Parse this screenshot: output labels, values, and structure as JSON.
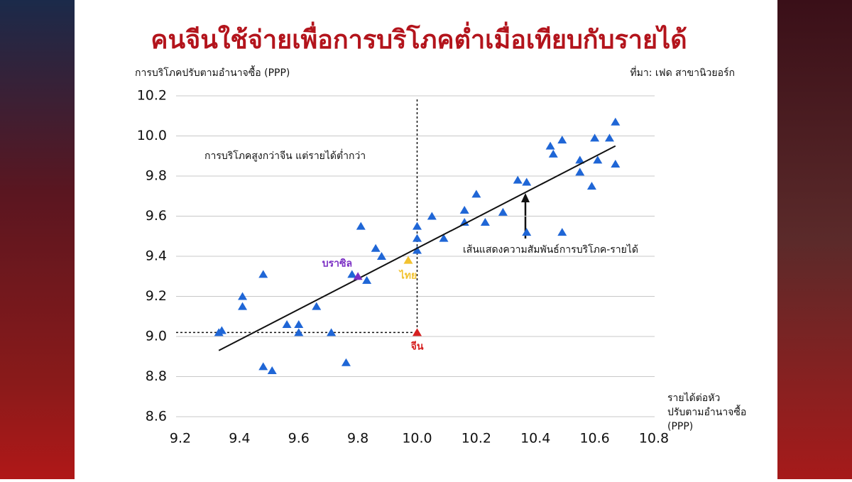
{
  "chart_data": {
    "type": "scatter",
    "title": "คนจีนใช้จ่ายเพื่อการบริโภคต่ำเมื่อเทียบกับรายได้",
    "y_label": "การบริโภคปรับตามอำนาจซื้อ (PPP)",
    "x_label": [
      "รายได้ต่อหัว",
      "ปรับตามอำนาจซื้อ",
      "(PPP)"
    ],
    "source": "ที่มา: เฟด สาขานิวยอร์ก",
    "annotations": [
      "การบริโภคสูงกว่าจีน แต่รายได้ต่ำกว่า",
      "เส้นแสดงความสัมพันธ์การบริโภค-รายได้"
    ],
    "xlim": [
      9.2,
      10.8
    ],
    "ylim": [
      8.6,
      10.2
    ],
    "xticks": [
      9.2,
      9.4,
      9.6,
      9.8,
      {
        "value": 10,
        "label": "10.0"
      },
      10.2,
      10.4,
      10.6,
      10.8
    ],
    "yticks": [
      8.6,
      8.8,
      {
        "value": 9,
        "label": "9.0"
      },
      9.2,
      9.4,
      9.6,
      9.8,
      {
        "value": 10,
        "label": "10.0"
      },
      10.2
    ],
    "grid": true,
    "color": "#1f66d6",
    "x": [
      9.33,
      9.34,
      9.41,
      9.41,
      9.48,
      9.51,
      9.48,
      9.56,
      9.6,
      9.6,
      9.66,
      9.71,
      9.76,
      9.78,
      9.81,
      9.83,
      9.86,
      9.88,
      10.0,
      10.0,
      10.0,
      10.05,
      10.09,
      10.16,
      10.16,
      10.2,
      10.23,
      10.29,
      10.34,
      10.37,
      10.37,
      10.45,
      10.46,
      10.49,
      10.49,
      10.55,
      10.55,
      10.59,
      10.6,
      10.61,
      10.65,
      10.67,
      10.67
    ],
    "y": [
      9.02,
      9.03,
      9.2,
      9.15,
      9.31,
      8.83,
      8.85,
      9.06,
      9.06,
      9.02,
      9.15,
      9.02,
      8.87,
      9.31,
      9.55,
      9.28,
      9.44,
      9.4,
      9.55,
      9.49,
      9.43,
      9.6,
      9.49,
      9.63,
      9.57,
      9.71,
      9.57,
      9.62,
      9.78,
      9.77,
      9.52,
      9.95,
      9.91,
      9.98,
      9.52,
      9.88,
      9.82,
      9.75,
      9.99,
      9.88,
      9.99,
      10.07,
      9.86
    ],
    "highlights": [
      {
        "label": "บราซิล",
        "x": 9.8,
        "y": 9.3,
        "color": "#7b2fc4"
      },
      {
        "label": "ไทย",
        "x": 9.97,
        "y": 9.38,
        "color": "#f2c230"
      },
      {
        "label": "จีน",
        "x": 10.0,
        "y": 9.02,
        "color": "#d62020"
      }
    ],
    "trend": {
      "x": [
        9.33,
        10.67
      ],
      "y": [
        8.93,
        9.95
      ]
    }
  }
}
